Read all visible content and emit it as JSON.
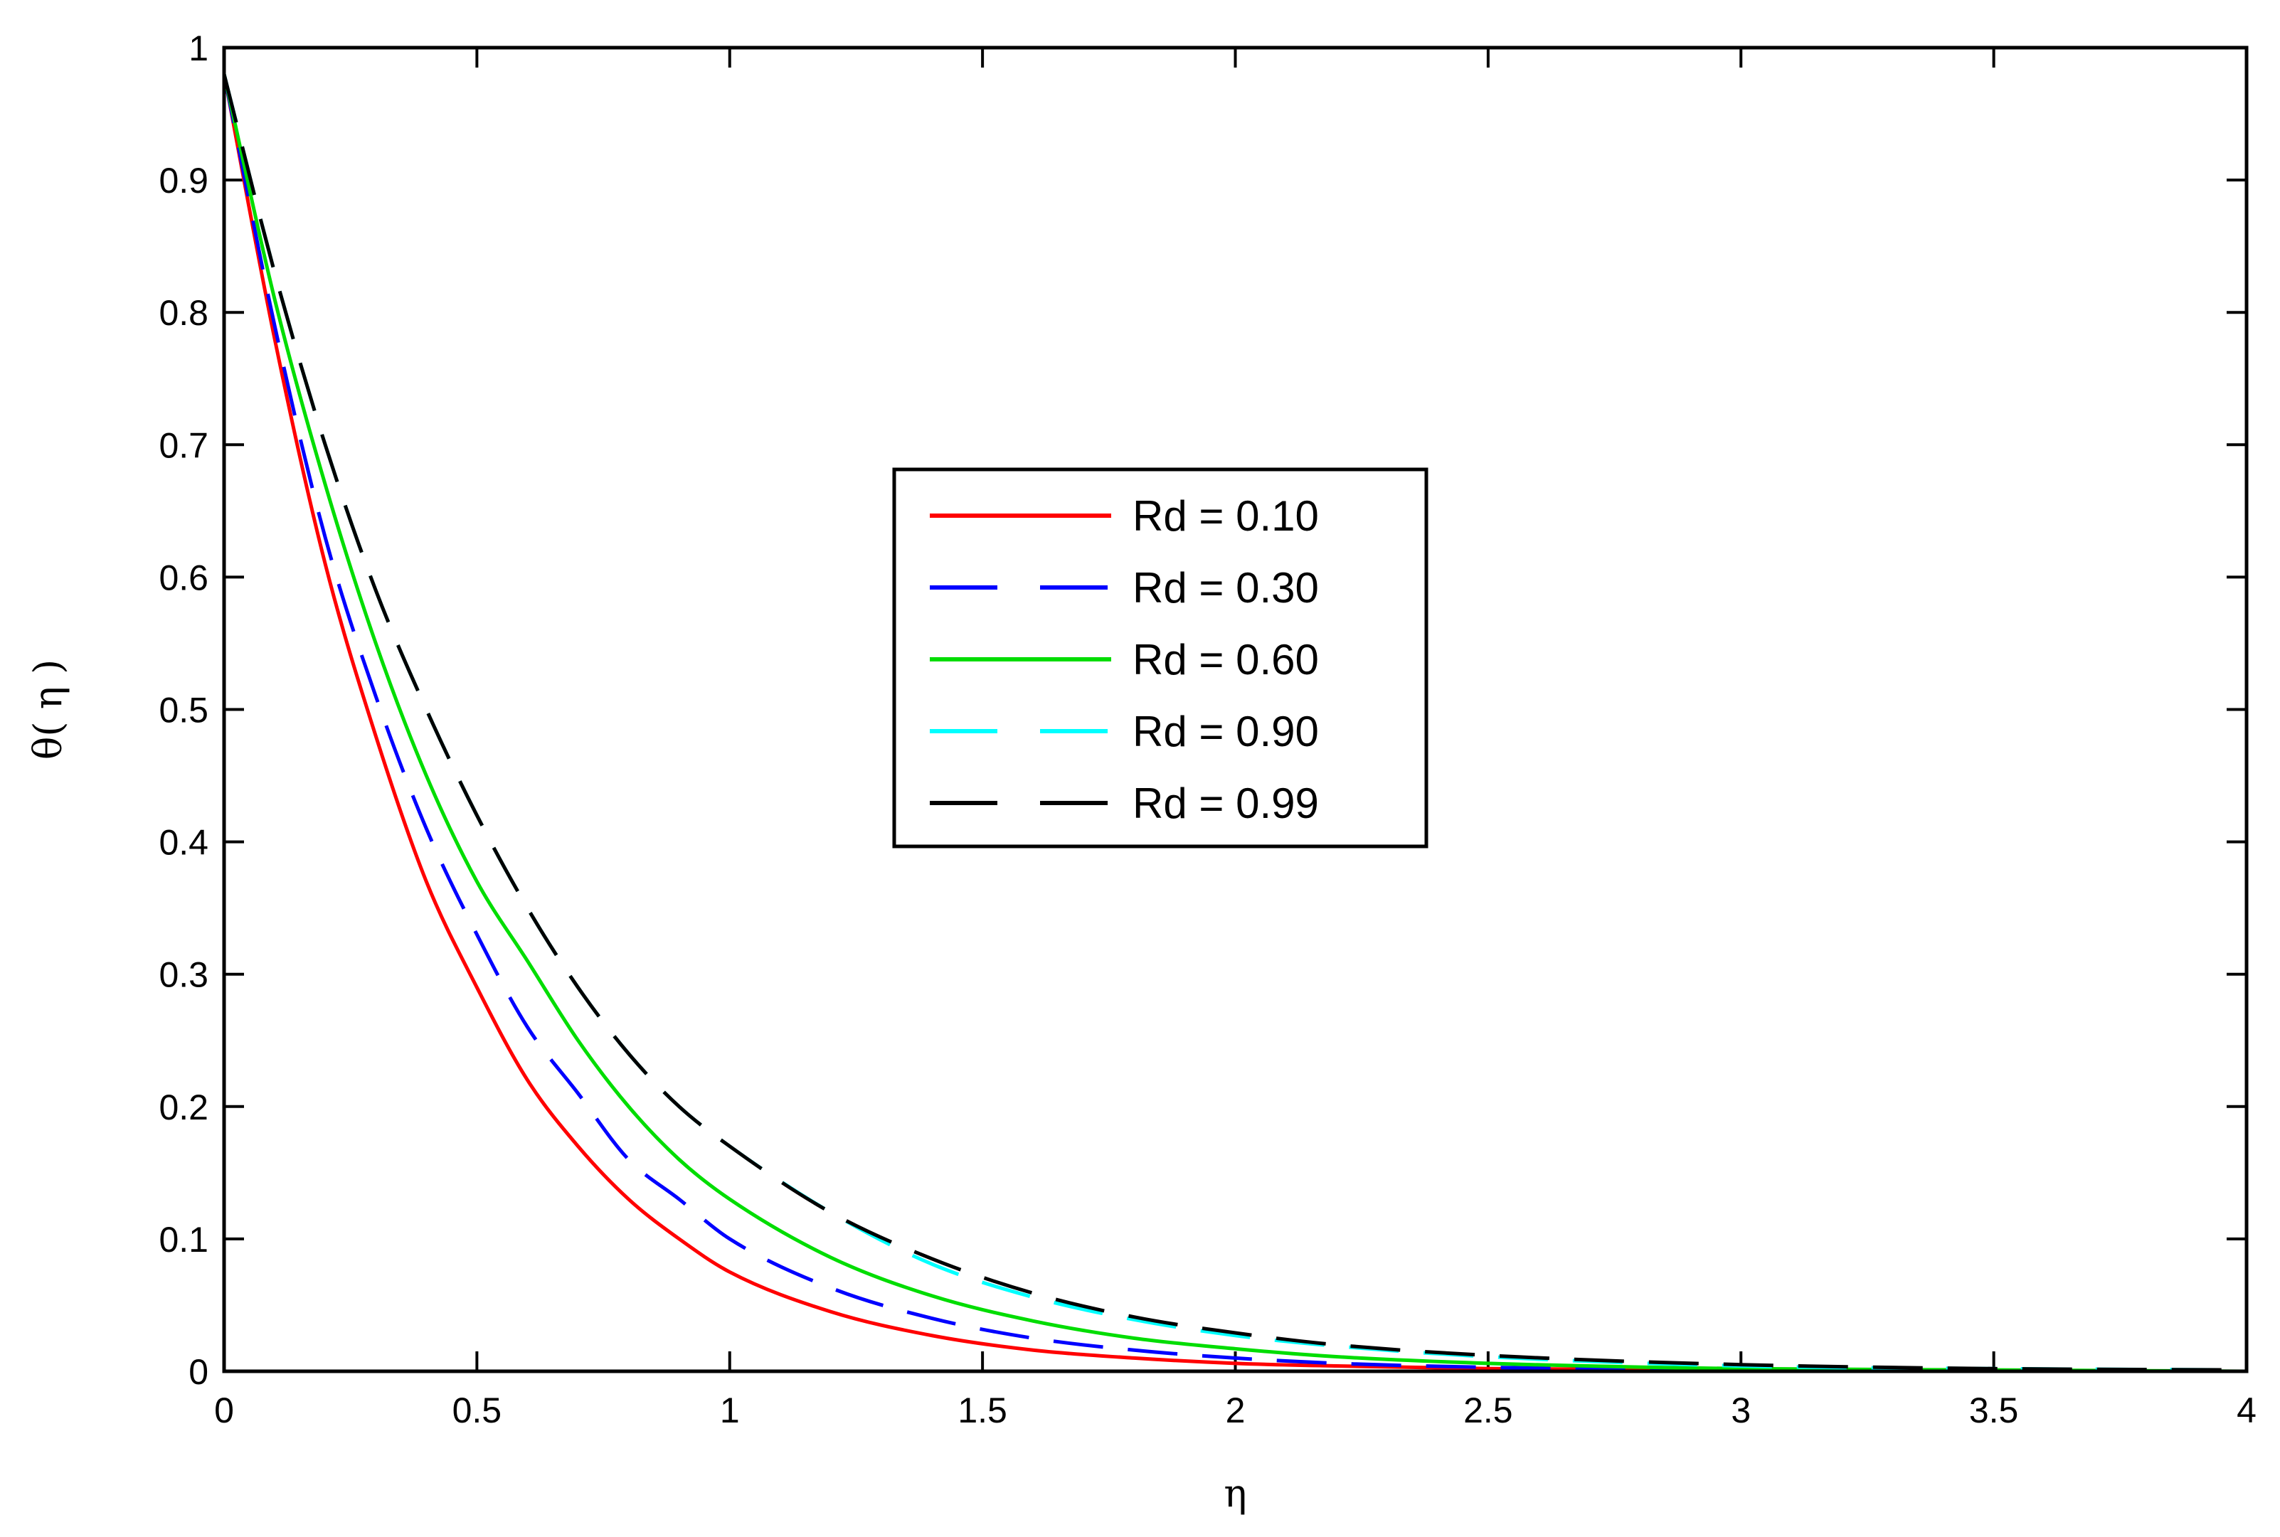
{
  "chart_data": {
    "type": "line",
    "title": "",
    "xlabel": "η",
    "ylabel": "θ( η )",
    "xlim": [
      0,
      4
    ],
    "ylim": [
      0,
      1
    ],
    "xticks": [
      "0",
      "0.5",
      "1",
      "1.5",
      "2",
      "2.5",
      "3",
      "3.5",
      "4"
    ],
    "yticks": [
      "0",
      "0.1",
      "0.2",
      "0.3",
      "0.4",
      "0.5",
      "0.6",
      "0.7",
      "0.8",
      "0.9",
      "1"
    ],
    "grid": false,
    "legend_position": "center",
    "x": [
      0,
      0.1,
      0.2,
      0.3,
      0.4,
      0.5,
      0.6,
      0.7,
      0.8,
      0.9,
      1.0,
      1.2,
      1.4,
      1.6,
      1.8,
      2.0,
      2.2,
      2.5,
      3.0,
      3.5,
      4.0
    ],
    "series": [
      {
        "name": "Rd = 0.10",
        "color": "#ff0000",
        "dash": "solid",
        "values": [
          0.98,
          0.78,
          0.61,
          0.48,
          0.37,
          0.29,
          0.22,
          0.17,
          0.13,
          0.1,
          0.075,
          0.045,
          0.027,
          0.016,
          0.01,
          0.006,
          0.004,
          0.002,
          0.001,
          0.0,
          0.0
        ]
      },
      {
        "name": "Rd = 0.30",
        "color": "#0000ff",
        "dash": "dashed",
        "values": [
          0.98,
          0.79,
          0.63,
          0.51,
          0.41,
          0.33,
          0.26,
          0.21,
          0.16,
          0.13,
          0.1,
          0.063,
          0.04,
          0.025,
          0.016,
          0.01,
          0.006,
          0.003,
          0.001,
          0.0,
          0.0
        ]
      },
      {
        "name": "Rd = 0.60",
        "color": "#00dd00",
        "dash": "solid",
        "values": [
          0.98,
          0.81,
          0.67,
          0.55,
          0.45,
          0.37,
          0.31,
          0.25,
          0.2,
          0.16,
          0.13,
          0.086,
          0.057,
          0.038,
          0.025,
          0.017,
          0.011,
          0.006,
          0.002,
          0.001,
          0.0
        ]
      },
      {
        "name": "Rd = 0.90",
        "color": "#00ffff",
        "dash": "dashed",
        "values": [
          0.98,
          0.83,
          0.7,
          0.59,
          0.5,
          0.42,
          0.35,
          0.29,
          0.24,
          0.2,
          0.17,
          0.12,
          0.081,
          0.056,
          0.039,
          0.027,
          0.019,
          0.011,
          0.004,
          0.002,
          0.001
        ]
      },
      {
        "name": "Rd = 0.99",
        "color": "#000000",
        "dash": "dashed",
        "values": [
          0.98,
          0.83,
          0.7,
          0.59,
          0.5,
          0.42,
          0.35,
          0.29,
          0.24,
          0.2,
          0.17,
          0.12,
          0.085,
          0.059,
          0.041,
          0.029,
          0.02,
          0.012,
          0.005,
          0.002,
          0.001
        ]
      }
    ]
  }
}
